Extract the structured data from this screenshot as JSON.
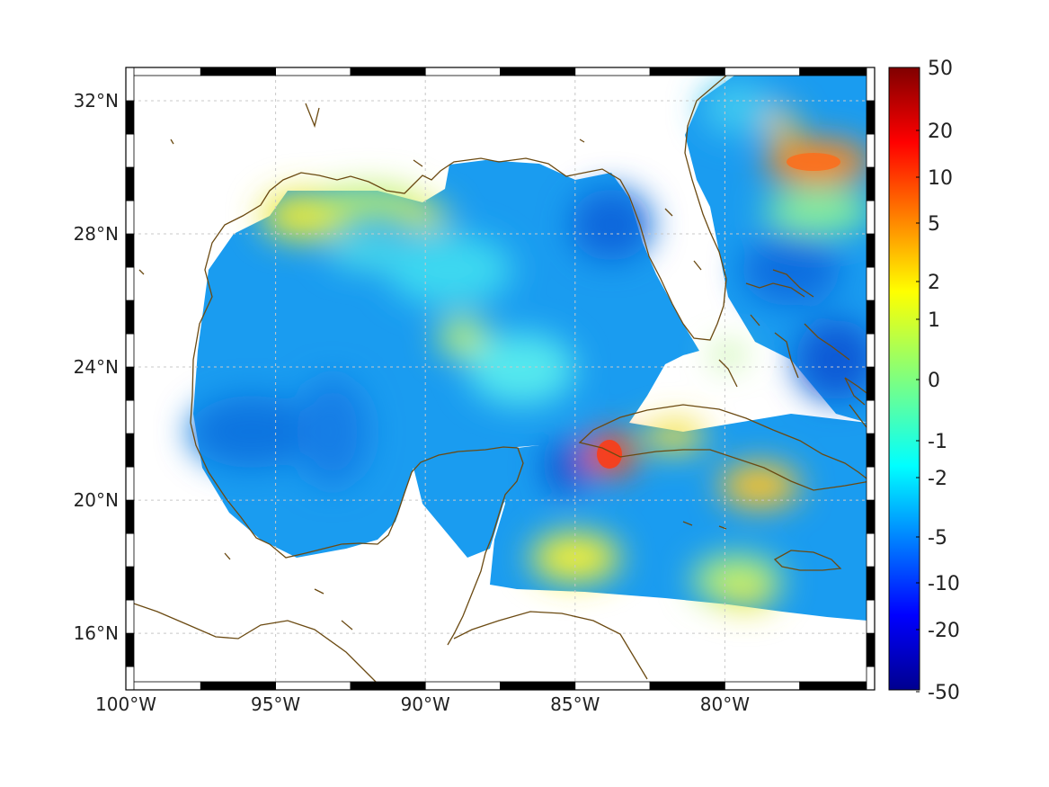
{
  "map": {
    "x_ticks": [
      {
        "lon": -100,
        "label": "100°W"
      },
      {
        "lon": -95,
        "label": "95°W"
      },
      {
        "lon": -90,
        "label": "90°W"
      },
      {
        "lon": -85,
        "label": "85°W"
      },
      {
        "lon": -80,
        "label": "80°W"
      }
    ],
    "y_ticks": [
      {
        "lat": 32,
        "label": "32°N"
      },
      {
        "lat": 28,
        "label": "28°N"
      },
      {
        "lat": 24,
        "label": "24°N"
      },
      {
        "lat": 20,
        "label": "20°N"
      },
      {
        "lat": 16,
        "label": "16°N"
      }
    ],
    "lon_range": [
      -100,
      -75
    ],
    "lat_range": [
      14.3,
      33
    ],
    "colors": {
      "coastline": "#6b4a12",
      "grid": "#c8c8c8",
      "frame": "#000000"
    }
  },
  "colorbar": {
    "ticks": [
      {
        "value": 50,
        "label": "50"
      },
      {
        "value": 20,
        "label": "20"
      },
      {
        "value": 10,
        "label": "10"
      },
      {
        "value": 5,
        "label": "5"
      },
      {
        "value": 2,
        "label": "2"
      },
      {
        "value": 1,
        "label": "1"
      },
      {
        "value": 0,
        "label": "0"
      },
      {
        "value": -1,
        "label": "-1"
      },
      {
        "value": -2,
        "label": "-2"
      },
      {
        "value": -5,
        "label": "-5"
      },
      {
        "value": -10,
        "label": "-10"
      },
      {
        "value": -20,
        "label": "-20"
      },
      {
        "value": -50,
        "label": "-50"
      }
    ],
    "colormap": "jet"
  }
}
